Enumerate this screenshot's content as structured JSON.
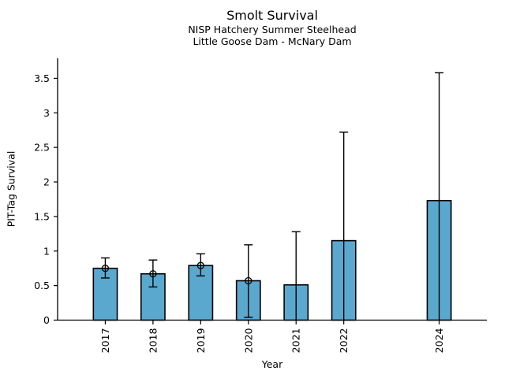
{
  "chart_data": {
    "type": "bar",
    "title": "Smolt Survival",
    "subtitle1": "NISP Hatchery Summer Steelhead",
    "subtitle2": "Little Goose Dam - McNary Dam",
    "xlabel": "Year",
    "ylabel": "PIT-Tag Survival",
    "categories": [
      "2017",
      "2018",
      "2019",
      "2020",
      "2021",
      "2022",
      "2024"
    ],
    "x": [
      2017,
      2018,
      2019,
      2020,
      2021,
      2022,
      2024
    ],
    "values": [
      0.75,
      0.67,
      0.79,
      0.57,
      0.51,
      1.15,
      1.73
    ],
    "error_low": [
      0.61,
      0.48,
      0.64,
      0.04,
      0,
      0,
      0
    ],
    "error_high": [
      0.9,
      0.87,
      0.96,
      1.09,
      1.28,
      2.72,
      3.58
    ],
    "point_markers": [
      true,
      true,
      true,
      true,
      false,
      false,
      false
    ],
    "lower_caps": [
      true,
      true,
      true,
      true,
      false,
      false,
      false
    ],
    "xlim": [
      2016,
      2025
    ],
    "ylim": [
      0,
      3.79
    ],
    "yticks": [
      0,
      0.5,
      1,
      1.5,
      2,
      2.5,
      3,
      3.5
    ],
    "ytick_labels": [
      "0",
      "0.5",
      "1",
      "1.5",
      "2",
      "2.5",
      "3",
      "3.5"
    ],
    "bar_width_years": 0.5,
    "bar_color": "#5BA8CF",
    "bar_edge_color": "#000000",
    "error_color": "#000000",
    "text_color": "#000000",
    "grid": false,
    "legend": null
  }
}
